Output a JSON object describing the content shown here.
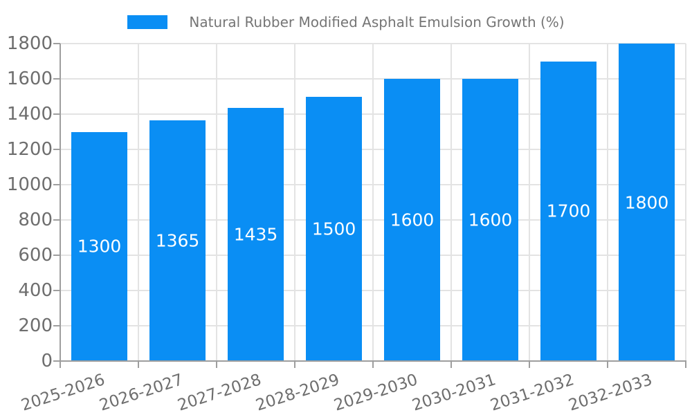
{
  "chart_data": {
    "type": "bar",
    "title": "Natural Rubber Modified Asphalt Emulsion Growth (%)",
    "legend": {
      "position": "top",
      "entries": [
        {
          "label": "Natural Rubber Modified Asphalt Emulsion Growth (%)",
          "color": "#0a8ef4"
        }
      ]
    },
    "categories": [
      "2025-2026",
      "2026-2027",
      "2027-2028",
      "2028-2029",
      "2029-2030",
      "2030-2031",
      "2031-2032",
      "2032-2033"
    ],
    "values": [
      1300,
      1365,
      1435,
      1500,
      1600,
      1600,
      1700,
      1800
    ],
    "bar_labels": [
      "1300",
      "1365",
      "1435",
      "1500",
      "1600",
      "1600",
      "1700",
      "1800"
    ],
    "xlabel": "",
    "ylabel": "",
    "ylim": [
      0,
      1800
    ],
    "ytick_step": 200,
    "yticks": [
      0,
      200,
      400,
      600,
      800,
      1000,
      1200,
      1400,
      1600,
      1800
    ],
    "ytick_labels": [
      "0",
      "200",
      "400",
      "600",
      "800",
      "1000",
      "1200",
      "1400",
      "1600",
      "1800"
    ],
    "xtick_rotation_deg": -18,
    "grid": true,
    "bar_value_label_position": "inside-middle",
    "colors": {
      "bar": "#0a8ef4",
      "bar_label": "#ffffff",
      "axis": "#9e9e9e",
      "gridline": "#e3e3e3",
      "tick_label": "#6e6e6e",
      "title": "#757575",
      "background": "#ffffff"
    }
  }
}
